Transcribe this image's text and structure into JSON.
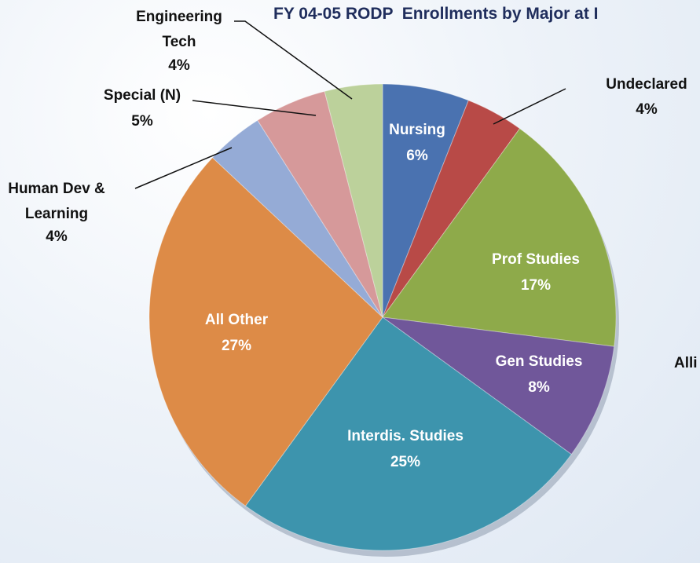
{
  "chart_data": {
    "type": "pie",
    "title": "FY 04-05 RODP  Enrollments by Major at I",
    "categories": [
      "Nursing",
      "Undeclared",
      "Prof Studies",
      "Gen Studies",
      "Interdis. Studies",
      "All Other",
      "Human Dev & Learning",
      "Special (N)",
      "Engineering Tech"
    ],
    "values": [
      6,
      4,
      17,
      8,
      25,
      27,
      4,
      5,
      4
    ],
    "value_labels": [
      "6%",
      "4%",
      "17%",
      "8%",
      "25%",
      "27%",
      "4%",
      "5%",
      "4%"
    ],
    "colors": [
      "#4a72b0",
      "#b84a47",
      "#8eaa4a",
      "#70579a",
      "#3d94ad",
      "#dd8b47",
      "#95abd6",
      "#d6999a",
      "#bcd19b"
    ],
    "annotations": [
      "Alli"
    ]
  }
}
